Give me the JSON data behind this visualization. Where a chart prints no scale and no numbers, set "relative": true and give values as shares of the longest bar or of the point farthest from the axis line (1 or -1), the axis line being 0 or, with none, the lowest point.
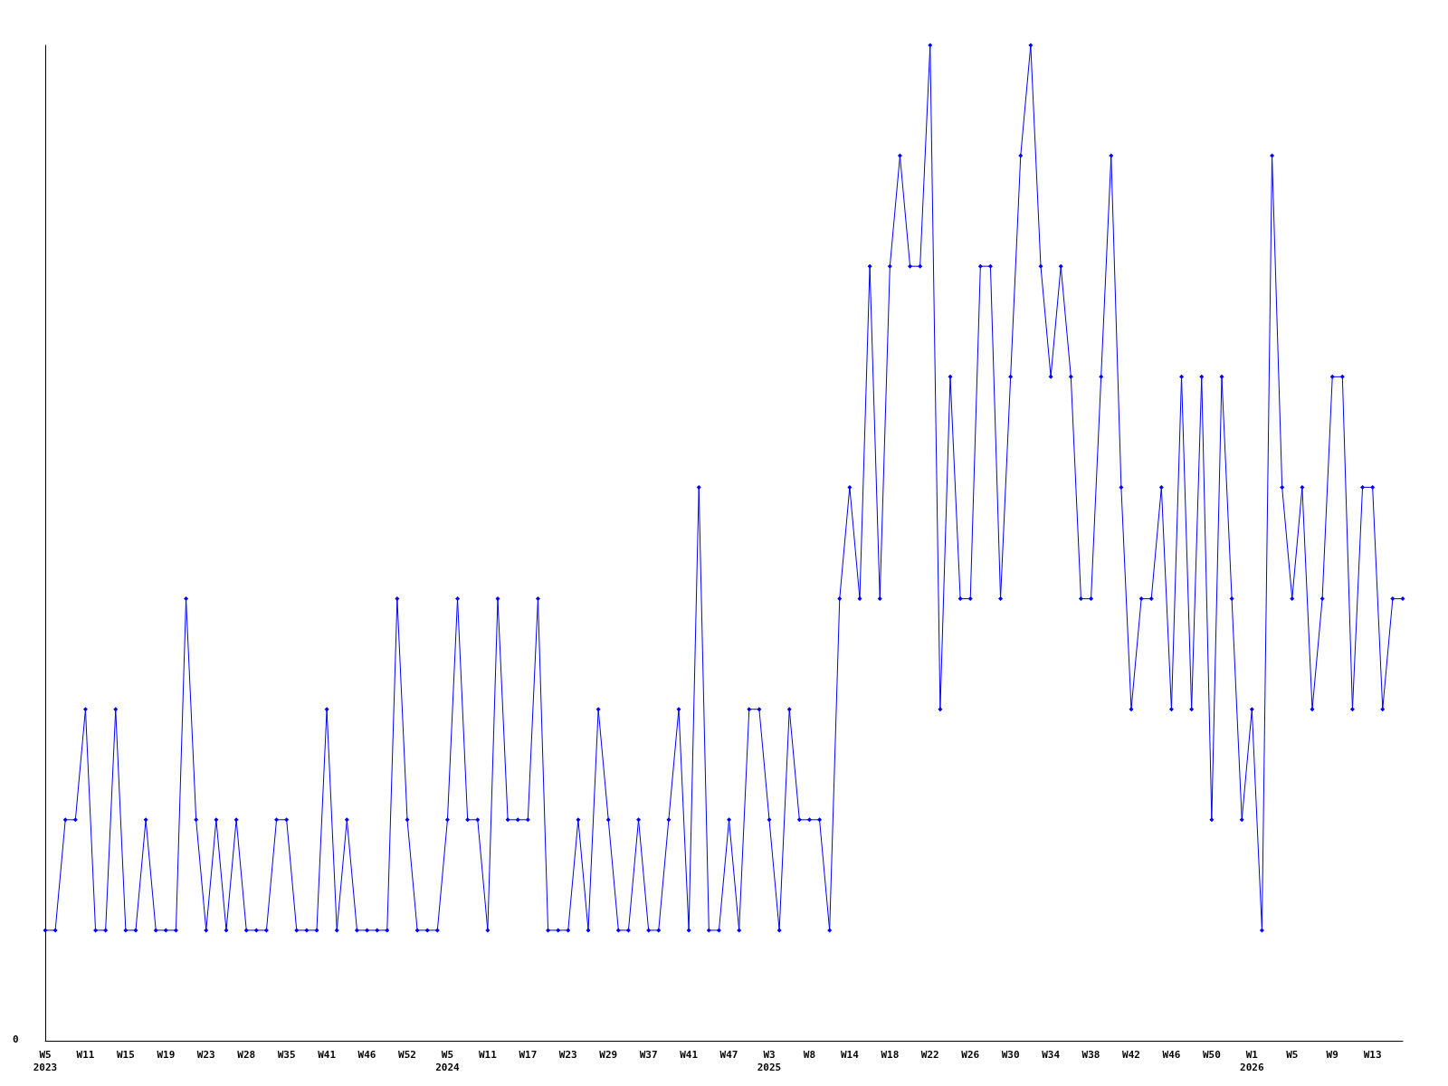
{
  "chart_data": {
    "type": "line",
    "relative": true,
    "color": "#0000ff",
    "marker": "diamond",
    "grid": false,
    "annotations": [
      "0"
    ],
    "categories": [
      "W5\n2023",
      null,
      null,
      null,
      "W11",
      null,
      null,
      null,
      "W15",
      null,
      null,
      null,
      "W19",
      null,
      null,
      null,
      "W23",
      null,
      null,
      null,
      "W28",
      null,
      null,
      null,
      "W35",
      null,
      null,
      null,
      "W41",
      null,
      null,
      null,
      "W46",
      null,
      null,
      null,
      "W52",
      null,
      null,
      null,
      "W5\n2024",
      null,
      null,
      null,
      "W11",
      null,
      null,
      null,
      "W17",
      null,
      null,
      null,
      "W23",
      null,
      null,
      null,
      "W29",
      null,
      null,
      null,
      "W37",
      null,
      null,
      null,
      "W41",
      null,
      null,
      null,
      "W47",
      null,
      null,
      null,
      "W3\n2025",
      null,
      null,
      null,
      "W8",
      null,
      null,
      null,
      "W14",
      null,
      null,
      null,
      "W18",
      null,
      null,
      null,
      "W22",
      null,
      null,
      null,
      "W26",
      null,
      null,
      null,
      "W30",
      null,
      null,
      null,
      "W34",
      null,
      null,
      null,
      "W38",
      null,
      null,
      null,
      "W42",
      null,
      null,
      null,
      "W46",
      null,
      null,
      null,
      "W50",
      null,
      null,
      null,
      "W1\n2026",
      null,
      null,
      null,
      "W5",
      null,
      null,
      null,
      "W9",
      null,
      null,
      null,
      "W13",
      null,
      null,
      null
    ],
    "values": [
      0.111,
      0.111,
      0.222,
      0.222,
      0.333,
      0.111,
      0.111,
      0.333,
      0.111,
      0.111,
      0.222,
      0.111,
      0.111,
      0.111,
      0.444,
      0.222,
      0.111,
      0.222,
      0.111,
      0.222,
      0.111,
      0.111,
      0.111,
      0.222,
      0.222,
      0.111,
      0.111,
      0.111,
      0.333,
      0.111,
      0.222,
      0.111,
      0.111,
      0.111,
      0.111,
      0.444,
      0.222,
      0.111,
      0.111,
      0.111,
      0.222,
      0.444,
      0.222,
      0.222,
      0.111,
      0.444,
      0.222,
      0.222,
      0.222,
      0.444,
      0.111,
      0.111,
      0.111,
      0.222,
      0.111,
      0.333,
      0.222,
      0.111,
      0.111,
      0.222,
      0.111,
      0.111,
      0.222,
      0.333,
      0.111,
      0.556,
      0.111,
      0.111,
      0.222,
      0.111,
      0.333,
      0.333,
      0.222,
      0.111,
      0.333,
      0.222,
      0.222,
      0.222,
      0.111,
      0.444,
      0.556,
      0.444,
      0.778,
      0.444,
      0.778,
      0.889,
      0.778,
      0.778,
      1,
      0.333,
      0.667,
      0.444,
      0.444,
      0.778,
      0.778,
      0.444,
      0.667,
      0.889,
      1,
      0.778,
      0.667,
      0.778,
      0.667,
      0.444,
      0.444,
      0.667,
      0.889,
      0.556,
      0.333,
      0.444,
      0.444,
      0.556,
      0.333,
      0.667,
      0.333,
      0.667,
      0.222,
      0.667,
      0.444,
      0.222,
      0.333,
      0.111,
      0.889,
      0.556,
      0.444,
      0.556,
      0.333,
      0.444,
      0.667,
      0.667,
      0.333,
      0.556,
      0.556,
      0.333,
      0.444,
      0.444
    ]
  }
}
